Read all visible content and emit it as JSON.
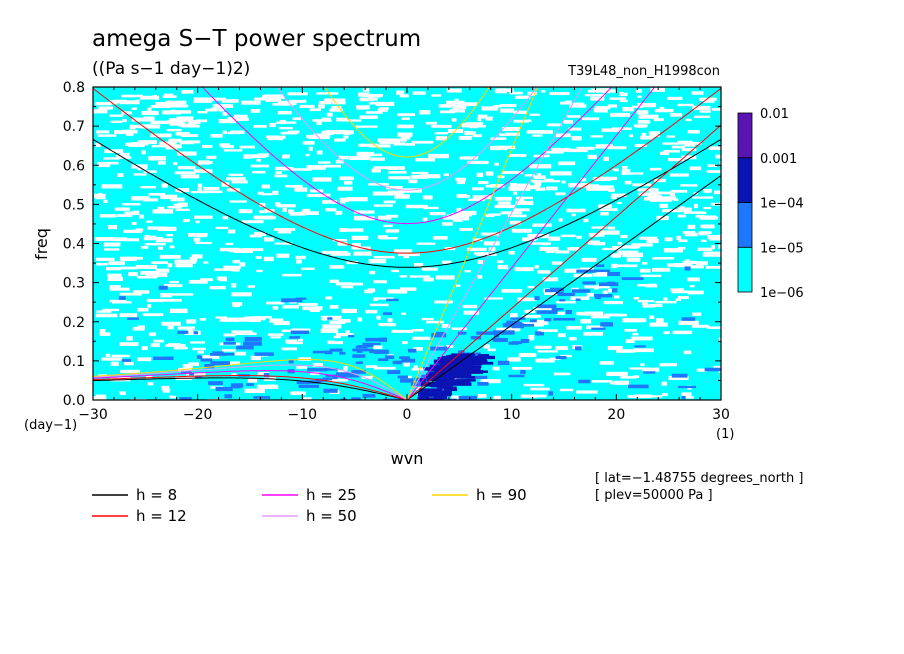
{
  "chart_data": {
    "type": "heatmap",
    "title": "amega S−T power spectrum",
    "subtitle": "((Pa s−1 day−1)2)",
    "run_label": "T39L48_non_H1998con",
    "xlabel": "wvn",
    "ylabel": "freq",
    "x_unit": "(1)",
    "y_unit": "(day−1)",
    "xlim": [
      -30,
      30
    ],
    "ylim": [
      0,
      0.8
    ],
    "x_ticks": [
      -30,
      -20,
      -10,
      0,
      10,
      20,
      30
    ],
    "x_tick_labels": [
      "−30",
      "−20",
      "−10",
      "0",
      "10",
      "20",
      "30"
    ],
    "y_ticks": [
      0.0,
      0.1,
      0.2,
      0.3,
      0.4,
      0.5,
      0.6,
      0.7,
      0.8
    ],
    "y_tick_labels": [
      "0.0",
      "0.1",
      "0.2",
      "0.3",
      "0.4",
      "0.5",
      "0.6",
      "0.7",
      "0.8"
    ],
    "colorbar": {
      "levels": [
        "1e−06",
        "1e−05",
        "1e−04",
        "0.001",
        "0.01"
      ],
      "colors": [
        "#00ffff",
        "#1e78ff",
        "#0a14b4",
        "#5a14b4"
      ]
    },
    "field_colors": {
      "low": "#00ffff",
      "mid": "#1e78ff",
      "high": "#0a14b4"
    },
    "dispersion_curves": [
      {
        "h": "8",
        "color": "#000000"
      },
      {
        "h": "12",
        "color": "#ff0000"
      },
      {
        "h": "25",
        "color": "#ff00ff"
      },
      {
        "h": "50",
        "color": "#e39bff"
      },
      {
        "h": "90",
        "color": "#ffd400"
      }
    ],
    "annotations": [
      "[ lat=−1.48755 degrees_north ]",
      "[ plev=50000 Pa ]"
    ]
  }
}
